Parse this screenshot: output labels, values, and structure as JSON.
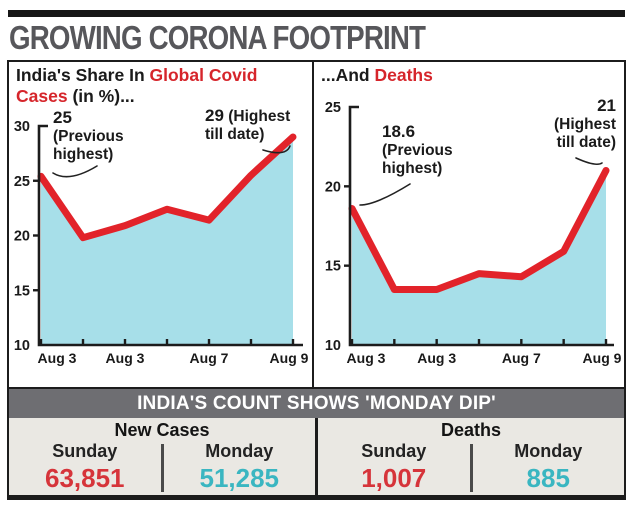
{
  "title": "GROWING CORONA FOOTPRINT",
  "colors": {
    "line_red": "#e2232a",
    "area_cyan": "#a7dfe9",
    "value_red": "#d6343a",
    "value_teal": "#3ab6c1",
    "header_bar_gray": "#6e6e72",
    "stats_bg": "#eae8e3",
    "title_gray": "#57575b"
  },
  "chart_data": [
    {
      "type": "area",
      "title": "India's Share In Global Covid Cases (in %)...",
      "title_parts": {
        "pre": "India's Share In ",
        "highlight": "Global Covid Cases ",
        "post": "(in %)..."
      },
      "x_tick_labels": [
        "Aug 3",
        "",
        "Aug 3",
        "",
        "Aug 7",
        "",
        "Aug 9"
      ],
      "values": [
        25.4,
        19.8,
        20.9,
        22.4,
        21.4,
        25.5,
        29
      ],
      "ylim": [
        10,
        30
      ],
      "yticks": [
        10,
        15,
        20,
        25,
        30
      ],
      "grid": false,
      "legend": false,
      "annotations": [
        {
          "value": "25",
          "label": "(Previous highest)",
          "point_index": 0
        },
        {
          "value": "29",
          "label": "(Highest till date)",
          "point_index": 6
        }
      ]
    },
    {
      "type": "area",
      "title": "...And Deaths",
      "title_parts": {
        "pre": "...And ",
        "highlight": "Deaths",
        "post": ""
      },
      "x_tick_labels": [
        "Aug 3",
        "",
        "Aug 3",
        "",
        "Aug 7",
        "",
        "Aug 9"
      ],
      "values": [
        18.6,
        13.5,
        13.5,
        14.5,
        14.3,
        15.9,
        21
      ],
      "ylim": [
        10,
        25
      ],
      "yticks": [
        10,
        15,
        20,
        25
      ],
      "grid": false,
      "legend": false,
      "annotations": [
        {
          "value": "18.6",
          "label": "(Previous highest)",
          "point_index": 0
        },
        {
          "value": "21",
          "label": "(Highest till date)",
          "point_index": 6
        }
      ]
    }
  ],
  "bottom": {
    "header": "INDIA'S COUNT SHOWS 'MONDAY DIP'",
    "groups": [
      {
        "title": "New Cases",
        "cols": [
          {
            "label": "Sunday",
            "value": "63,851"
          },
          {
            "label": "Monday",
            "value": "51,285"
          }
        ]
      },
      {
        "title": "Deaths",
        "cols": [
          {
            "label": "Sunday",
            "value": "1,007"
          },
          {
            "label": "Monday",
            "value": "885"
          }
        ]
      }
    ]
  }
}
